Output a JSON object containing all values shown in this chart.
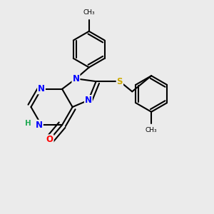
{
  "background_color": "#ebebeb",
  "bond_color": "#000000",
  "bond_width": 1.5,
  "atom_colors": {
    "N": "#0000ff",
    "O": "#ff0000",
    "S": "#ccaa00",
    "H": "#22aa55",
    "C": "#000000"
  },
  "font_size_atom": 8.5,
  "font_size_h": 7.5
}
